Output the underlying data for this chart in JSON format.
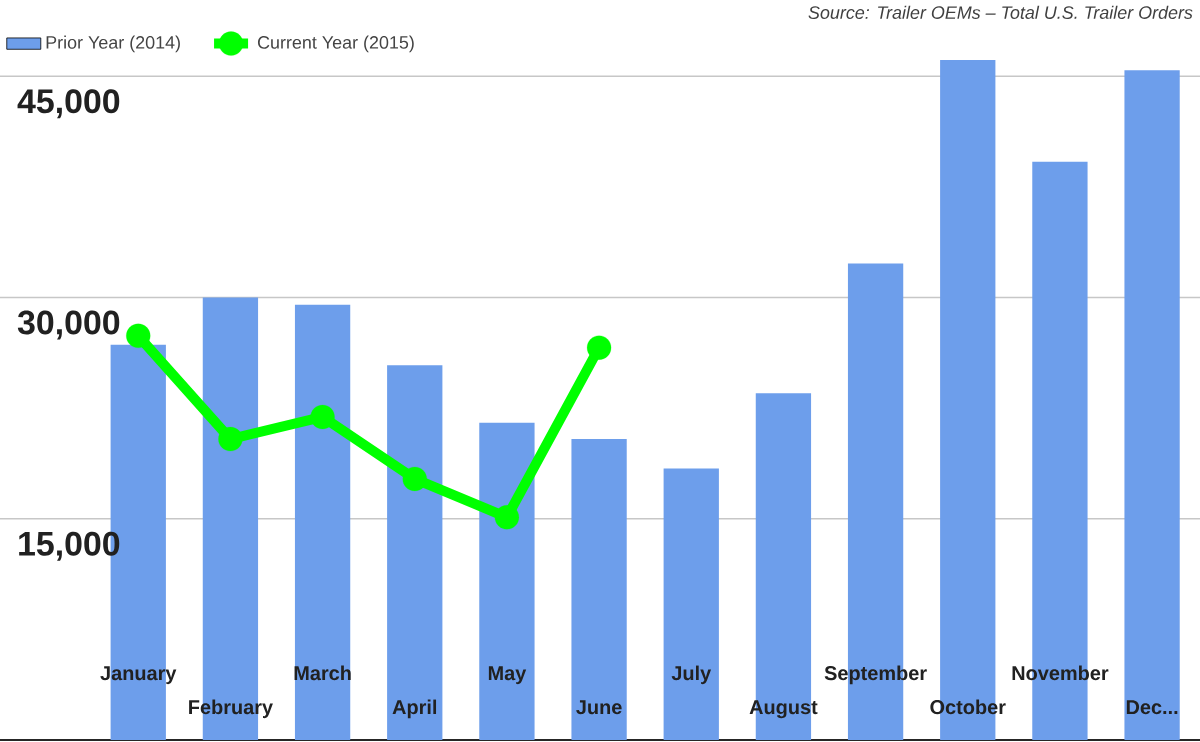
{
  "chart_data": {
    "type": "bar",
    "categories": [
      "January",
      "February",
      "March",
      "April",
      "May",
      "June",
      "July",
      "August",
      "September",
      "October",
      "November",
      "Dec..."
    ],
    "series": [
      {
        "name": "Prior Year (2014)",
        "color": "#6d9eeb",
        "values": [
          26800,
          30000,
          29500,
          25400,
          21500,
          20400,
          18400,
          23500,
          32300,
          46100,
          39200,
          45400
        ]
      },
      {
        "name": "Current Year (2015)",
        "type": "line",
        "color": "#00ff00",
        "marker": "circle",
        "values": [
          27400,
          20400,
          21900,
          17700,
          15100,
          26600,
          null,
          null,
          null,
          null,
          null,
          null
        ]
      }
    ],
    "ylim": [
      0,
      46100
    ],
    "yticks": [
      {
        "value": 15000,
        "label": "15,000"
      },
      {
        "value": 30000,
        "label": "30,000"
      },
      {
        "value": 45000,
        "label": "45,000"
      }
    ],
    "grid": "y",
    "legend": "top left",
    "annotations": [
      "Source: Trailer OEMs – Total U.S. Trailer Orders"
    ]
  }
}
